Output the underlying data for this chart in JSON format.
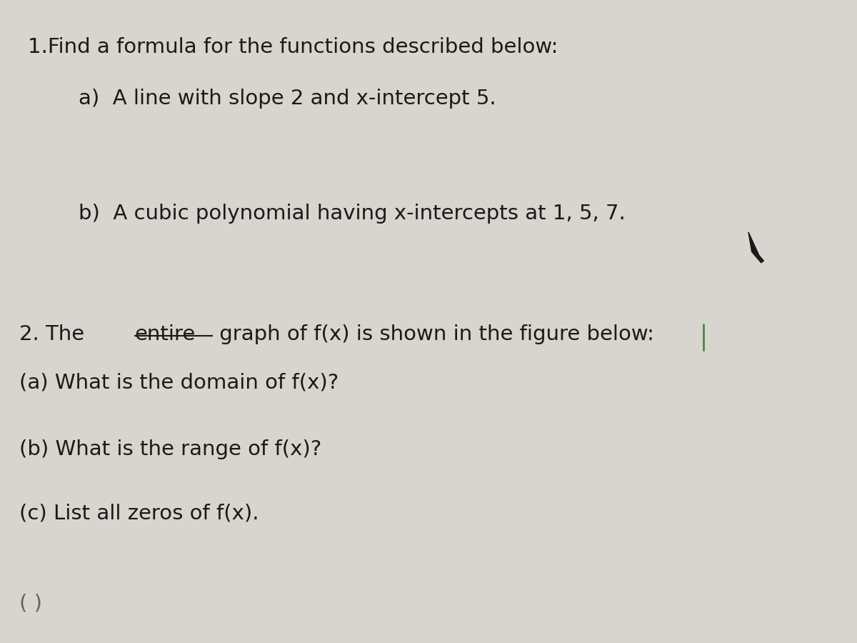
{
  "background_color": "#d8d4ce",
  "text_color": "#1a1a1a",
  "title": "1.Find a formula for the functions described below:",
  "line1a": "a)  A line with slope 2 and x-intercept 5.",
  "line1b": "b)  A cubic polynomial having x-intercepts at 1, 5, 7.",
  "line2_intro_pre": "2. The ",
  "line2_intro_underline": "entire",
  "line2_intro_post": " graph of f(x) is shown in the figure below:",
  "line2a": "(a) What is the domain of f(x)?",
  "line2b": "(b) What is the range of f(x)?",
  "line2c": "(c) List all zeros of f(x).",
  "figsize": [
    12,
    9
  ],
  "dpi": 100
}
